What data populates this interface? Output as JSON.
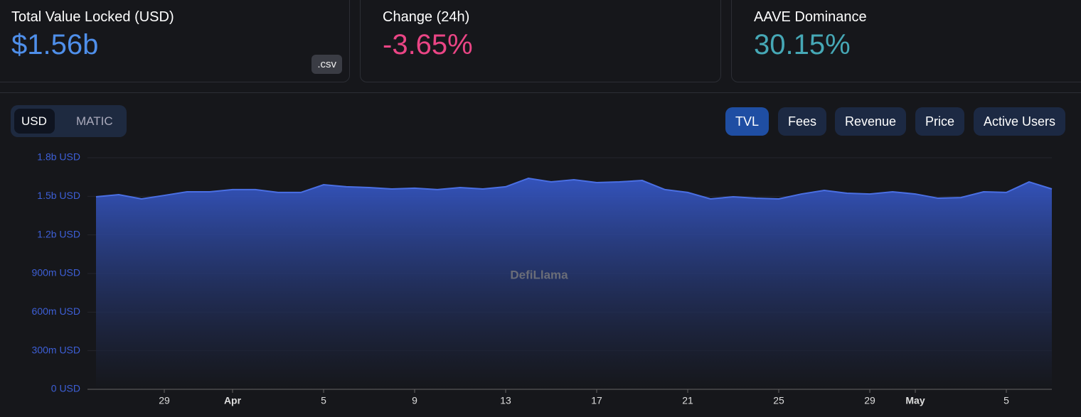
{
  "stats": [
    {
      "label": "Total Value Locked (USD)",
      "value": "$1.56b",
      "button": ".csv"
    },
    {
      "label": "Change (24h)",
      "value": "-3.65%"
    },
    {
      "label": "AAVE Dominance",
      "value": "30.15%"
    }
  ],
  "denomination": [
    "USD",
    "MATIC"
  ],
  "metrics": [
    "TVL",
    "Fees",
    "Revenue",
    "Price",
    "Active Users"
  ],
  "watermark": "DefiLlama",
  "chart_data": {
    "type": "area",
    "color": "#4a6fe3",
    "categories": [
      null,
      null,
      null,
      "29",
      null,
      null,
      "Apr",
      null,
      null,
      null,
      "5",
      null,
      null,
      null,
      "9",
      null,
      null,
      null,
      "13",
      null,
      null,
      null,
      "17",
      null,
      null,
      null,
      "21",
      null,
      null,
      null,
      "25",
      null,
      null,
      null,
      "29",
      null,
      "May",
      null,
      null,
      null,
      "5",
      null,
      null
    ],
    "values": [
      1.496,
      1.513,
      1.48,
      1.507,
      1.535,
      1.535,
      1.552,
      1.552,
      1.53,
      1.53,
      1.59,
      1.574,
      1.568,
      1.557,
      1.563,
      1.552,
      1.568,
      1.557,
      1.574,
      1.64,
      1.612,
      1.629,
      1.607,
      1.612,
      1.623,
      1.552,
      1.53,
      1.48,
      1.496,
      1.485,
      1.48,
      1.518,
      1.546,
      1.524,
      1.518,
      1.535,
      1.518,
      1.485,
      1.49,
      1.535,
      1.53,
      1.612,
      1.557
    ],
    "ylim": [
      0,
      1.8
    ],
    "yticks": [
      {
        "value": 0,
        "label": "0 USD"
      },
      {
        "value": 0.3,
        "label": "300m USD"
      },
      {
        "value": 0.6,
        "label": "600m USD"
      },
      {
        "value": 0.9,
        "label": "900m USD"
      },
      {
        "value": 1.2,
        "label": "1.2b USD"
      },
      {
        "value": 1.5,
        "label": "1.5b USD"
      },
      {
        "value": 1.8,
        "label": "1.8b USD"
      }
    ],
    "grid": true
  }
}
